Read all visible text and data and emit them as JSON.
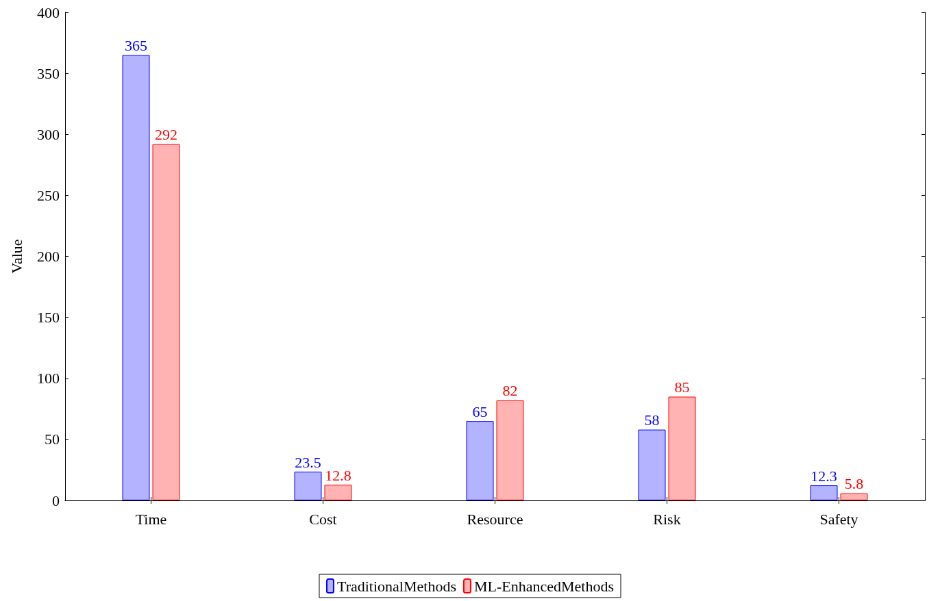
{
  "chart_data": {
    "type": "bar",
    "ylabel": "Value",
    "categories": [
      "Time",
      "Cost",
      "Resource",
      "Risk",
      "Safety"
    ],
    "series": [
      {
        "name": "TraditionalMethods",
        "color": "#b3b3ff",
        "values": [
          365,
          23.5,
          65,
          58,
          12.3
        ]
      },
      {
        "name": "ML-EnhancedMethods",
        "color": "#ffb3b3",
        "values": [
          292,
          12.8,
          82,
          85,
          5.8
        ]
      }
    ],
    "ylim": [
      0,
      400
    ],
    "yticks": [
      0,
      50,
      100,
      150,
      200,
      250,
      300,
      350,
      400
    ],
    "data_labels": true,
    "grid": false,
    "legend": "bottom"
  }
}
